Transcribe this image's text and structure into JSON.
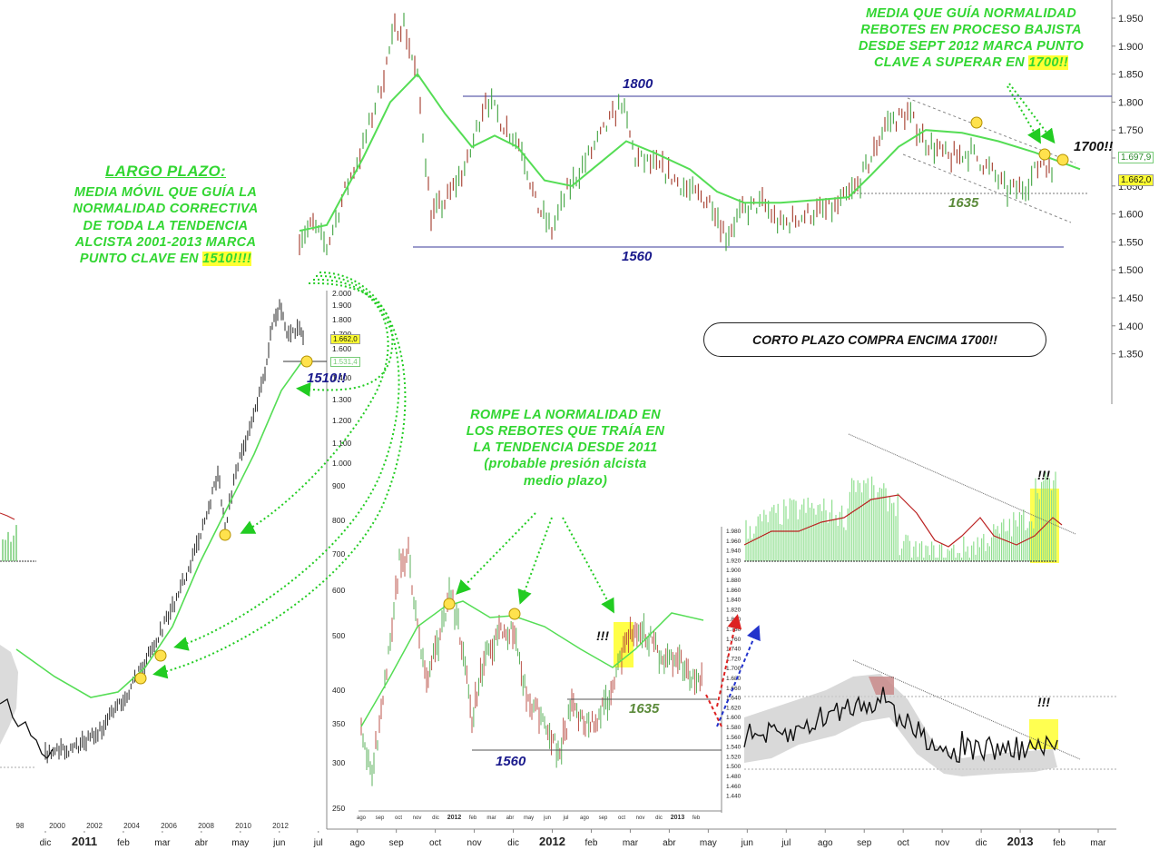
{
  "main_chart": {
    "y_axis_labels": [
      "1.950",
      "1.900",
      "1.850",
      "1.800",
      "1.750",
      "1.700",
      "1.650",
      "1.600",
      "1.550",
      "1.500",
      "1.450",
      "1.400",
      "1.350"
    ],
    "x_axis_labels": [
      "dic",
      "2011",
      "feb",
      "mar",
      "abr",
      "may",
      "jun",
      "jul",
      "ago",
      "sep",
      "oct",
      "nov",
      "dic",
      "2012",
      "feb",
      "mar",
      "abr",
      "may",
      "jun",
      "jul",
      "ago",
      "sep",
      "oct",
      "nov",
      "dic",
      "2013",
      "feb",
      "mar"
    ],
    "price_label_upper": "1.697,9",
    "price_label_lower": "1.662,0"
  },
  "chart_data": [
    {
      "type": "line",
      "title": "",
      "ylim": [
        1330,
        1960
      ],
      "levels": {
        "resistance_1800": 1800,
        "support_1560": 1560,
        "support_1635": 1635
      },
      "price_path": [
        [
          "2011-06",
          1560
        ],
        [
          "2011-07",
          1600
        ],
        [
          "2011-08",
          1800
        ],
        [
          "2011-09",
          1900
        ],
        [
          "2011-09",
          1940
        ],
        [
          "2011-10",
          1650
        ],
        [
          "2011-11",
          1760
        ],
        [
          "2011-12",
          1580
        ],
        [
          "2012-01",
          1700
        ],
        [
          "2012-02",
          1780
        ],
        [
          "2012-03",
          1700
        ],
        [
          "2012-05",
          1560
        ],
        [
          "2012-06",
          1620
        ],
        [
          "2012-07",
          1590
        ],
        [
          "2012-08",
          1620
        ],
        [
          "2012-09",
          1740
        ],
        [
          "2012-10",
          1790
        ],
        [
          "2012-11",
          1720
        ],
        [
          "2012-12",
          1700
        ],
        [
          "2013-01",
          1660
        ],
        [
          "2013-02",
          1662
        ]
      ]
    },
    {
      "type": "line",
      "title": "",
      "x_labels": [
        "98",
        "2000",
        "2002",
        "2004",
        "2006",
        "2008",
        "2010",
        "2012"
      ],
      "y_labels": [
        "2.000",
        "1.900",
        "1.800",
        "1.700",
        "1.600",
        "1.500",
        "1.400",
        "1.300",
        "1.200",
        "1.100",
        "1.000",
        "900",
        "800",
        "700",
        "600",
        "500",
        "400",
        "350",
        "300",
        "250"
      ],
      "price_labels": [
        "1.662,0",
        "1.531,4"
      ]
    },
    {
      "type": "line",
      "title": "",
      "x_labels": [
        "ago",
        "sep",
        "oct",
        "nov",
        "dic",
        "2012",
        "feb",
        "mar",
        "abr",
        "may",
        "jun",
        "jul",
        "ago",
        "sep",
        "oct",
        "nov",
        "dic",
        "2013",
        "feb"
      ],
      "y_labels": [
        "1.980",
        "1.960",
        "1.940",
        "1.920",
        "1.900",
        "1.880",
        "1.860",
        "1.840",
        "1.820",
        "1.800",
        "1.780",
        "1.760",
        "1.740",
        "1.720",
        "1.700",
        "1.680",
        "1.660",
        "1.640",
        "1.620",
        "1.600",
        "1.580",
        "1.560",
        "1.540",
        "1.520",
        "1.500",
        "1.480",
        "1.460",
        "1.440"
      ],
      "levels": [
        1560,
        1635
      ]
    }
  ],
  "annotations": {
    "top_right_lines": [
      "MEDIA QUE GUÍA NORMALIDAD",
      "REBOTES EN PROCESO BAJISTA",
      "DESDE SEPT 2012 MARCA PUNTO",
      "CLAVE A SUPERAR EN "
    ],
    "top_right_highlight": "1700!!",
    "label_1800": "1800",
    "label_1560_top": "1560",
    "label_1635_top": "1635",
    "label_1700": "1700!!",
    "long_term_title": "LARGO PLAZO:",
    "long_term_lines": [
      "MEDIA MÓVIL QUE GUÍA LA",
      "NORMALIDAD CORRECTIVA",
      "DE TODA LA TENDENCIA",
      "ALCISTA 2001-2013 MARCA",
      "PUNTO CLAVE EN "
    ],
    "long_term_highlight": "1510!!!!",
    "label_1510": "1510!!",
    "short_term": "CORTO PLAZO COMPRA ENCIMA 1700!!",
    "mid_lines": [
      "ROMPE LA NORMALIDAD EN",
      "LOS REBOTES QUE TRAÍA EN",
      "LA TENDENCIA DESDE 2011",
      "(probable presión alcista",
      "medio plazo)"
    ],
    "label_1635_mid": "1635",
    "label_1560_mid": "1560",
    "excl_1": "!!!",
    "excl_2": "!!!",
    "excl_3": "!!!"
  }
}
